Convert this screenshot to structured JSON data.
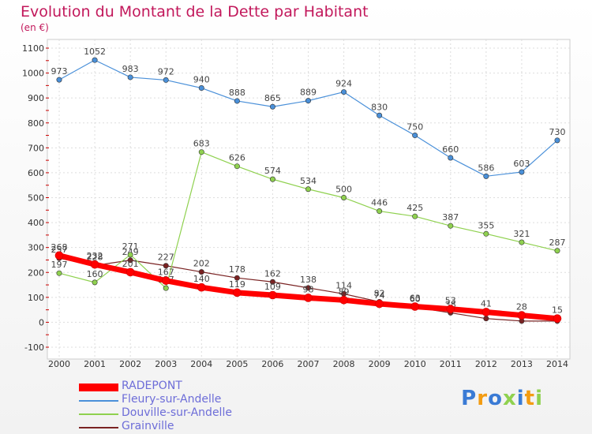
{
  "chart_data": {
    "type": "line",
    "title": "Evolution du Montant de la Dette par Habitant",
    "unit_label": "(en €)",
    "x": [
      "2000",
      "2001",
      "2002",
      "2003",
      "2004",
      "2005",
      "2006",
      "2007",
      "2008",
      "2009",
      "2010",
      "2011",
      "2012",
      "2013",
      "2014"
    ],
    "yticks": [
      "-100",
      "0",
      "100",
      "200",
      "300",
      "400",
      "500",
      "600",
      "700",
      "800",
      "900",
      "1000",
      "1100"
    ],
    "ylim": [
      -100,
      1100
    ],
    "grid": true,
    "legend_position": "bottom-left",
    "series": [
      {
        "name": "Grainville",
        "color": "#7a2323",
        "values": [
          257,
          228,
          249,
          227,
          202,
          178,
          162,
          138,
          114,
          82,
          60,
          38,
          15,
          5,
          5
        ],
        "labels": [
          "257",
          "228",
          "249",
          "227",
          "202",
          "178",
          "162",
          "138",
          "114",
          "82",
          "60",
          "38",
          "",
          "",
          ""
        ]
      },
      {
        "name": "Douville-sur-Andelle",
        "color": "#8fd14f",
        "values": [
          197,
          160,
          271,
          137,
          683,
          626,
          574,
          534,
          500,
          446,
          425,
          387,
          355,
          321,
          287
        ],
        "labels": [
          "197",
          "160",
          "271",
          "137",
          "683",
          "626",
          "574",
          "534",
          "500",
          "446",
          "425",
          "387",
          "355",
          "321",
          "287"
        ]
      },
      {
        "name": "Fleury-sur-Andelle",
        "color": "#4a90d9",
        "values": [
          973,
          1052,
          983,
          972,
          940,
          888,
          865,
          889,
          924,
          830,
          750,
          660,
          586,
          603,
          730
        ],
        "labels": [
          "973",
          "1052",
          "983",
          "972",
          "940",
          "888",
          "865",
          "889",
          "924",
          "830",
          "750",
          "660",
          "586",
          "603",
          "730"
        ]
      },
      {
        "name": "RADEPONT",
        "color": "#ff0000",
        "values": [
          268,
          232,
          201,
          167,
          140,
          119,
          109,
          98,
          89,
          74,
          63,
          53,
          41,
          28,
          15
        ],
        "labels": [
          "268",
          "232",
          "201",
          "167",
          "140",
          "119",
          "109",
          "98",
          "89",
          "74",
          "63",
          "53",
          "41",
          "28",
          "15"
        ]
      }
    ],
    "legend": [
      {
        "name": "RADEPONT",
        "color": "#ff0000",
        "thick": true
      },
      {
        "name": "Fleury-sur-Andelle",
        "color": "#4a90d9",
        "thick": false
      },
      {
        "name": "Douville-sur-Andelle",
        "color": "#8fd14f",
        "thick": false
      },
      {
        "name": "Grainville",
        "color": "#7a2323",
        "thick": false
      }
    ]
  },
  "logo": {
    "letters": [
      "P",
      "r",
      "o",
      "x",
      "i",
      "t",
      "i"
    ],
    "colors": [
      "#3a7bd5",
      "#f39c12",
      "#3a7bd5",
      "#8fd14f",
      "#3a7bd5",
      "#f39c12",
      "#8fd14f"
    ]
  }
}
